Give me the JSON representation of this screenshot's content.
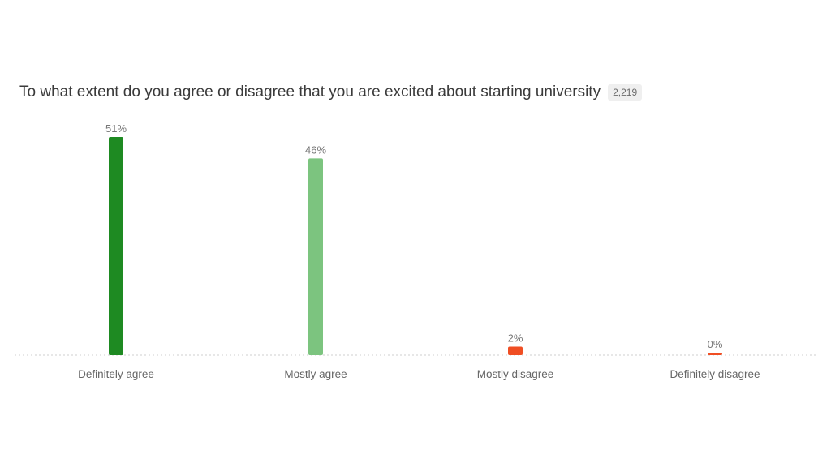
{
  "question": {
    "title": "To what extent do you agree or disagree that you are excited about starting university",
    "response_count": "2,219"
  },
  "chart_data": {
    "type": "bar",
    "title": "To what extent do you agree or disagree that you are excited about starting university",
    "categories": [
      "Definitely agree",
      "Mostly agree",
      "Mostly disagree",
      "Definitely disagree"
    ],
    "values": [
      51,
      46,
      2,
      0
    ],
    "value_labels": [
      "51%",
      "46%",
      "2%",
      "0%"
    ],
    "colors": [
      "#1e8a22",
      "#7cc47f",
      "#f04e23",
      "#f04e23"
    ],
    "unit": "%",
    "ylim": [
      0,
      51
    ],
    "grid": false,
    "baseline_style": "dotted",
    "legend": "none"
  }
}
